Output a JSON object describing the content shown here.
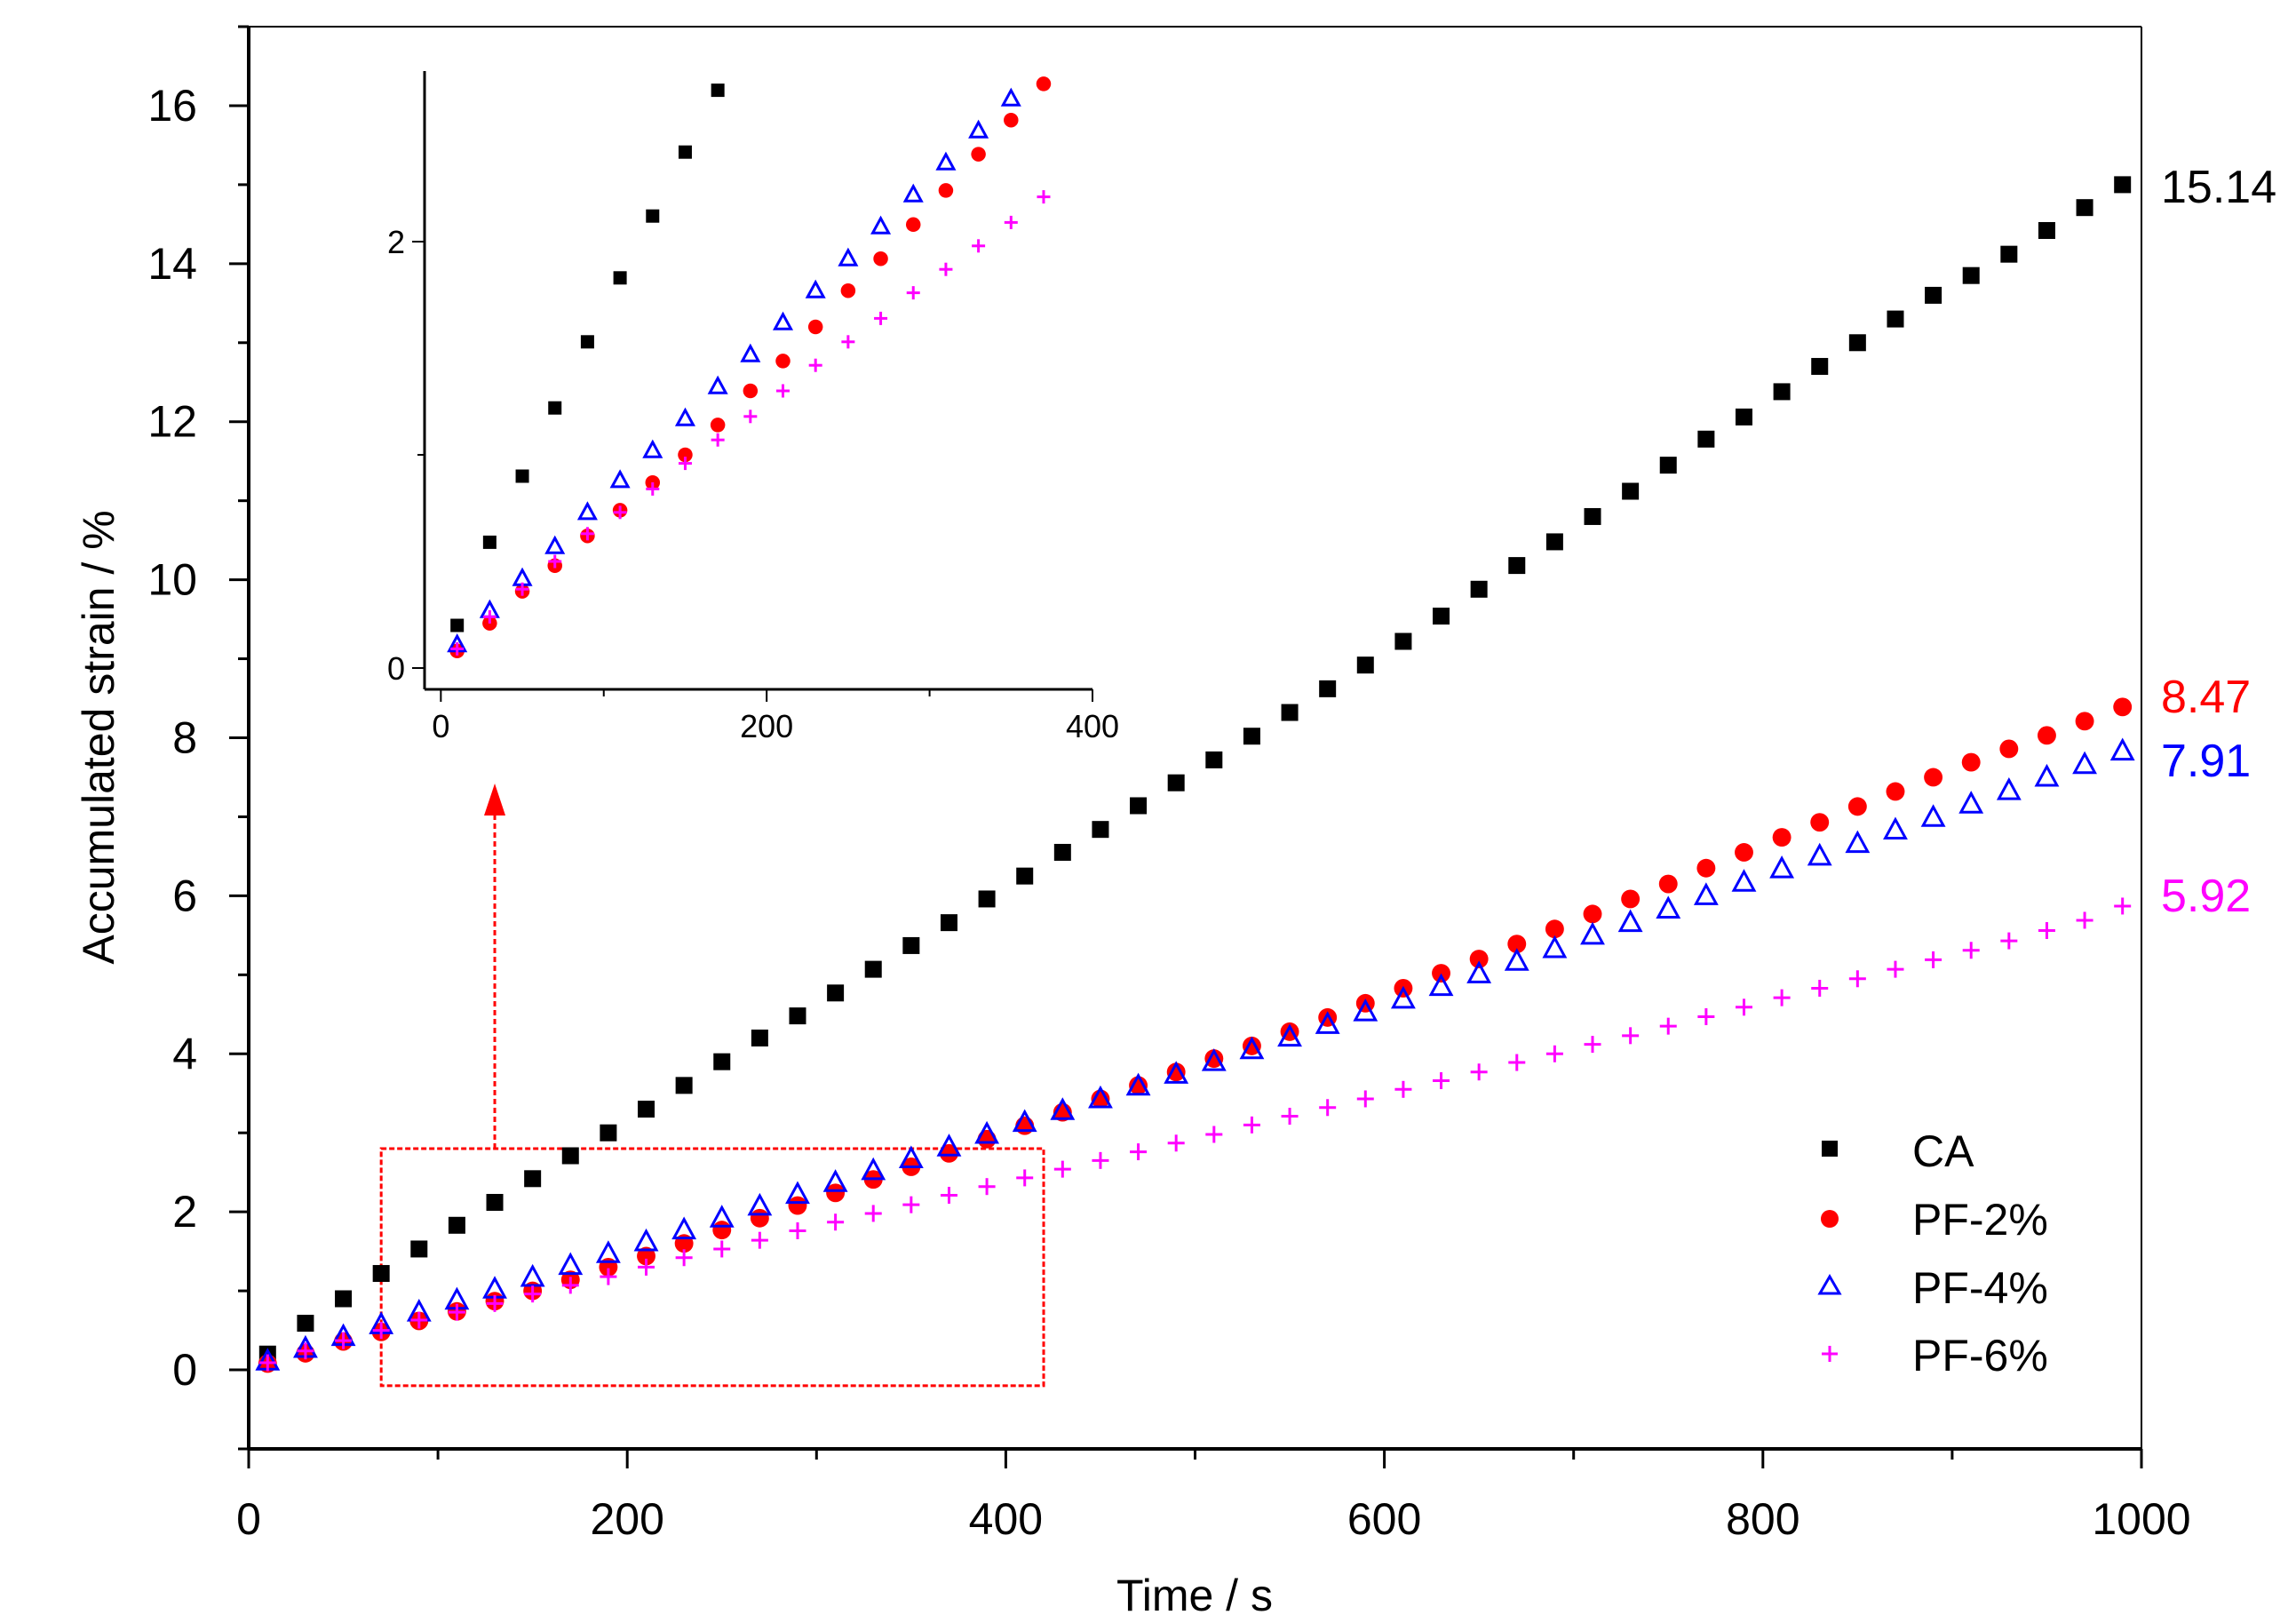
{
  "chart_data": {
    "type": "scatter",
    "xlabel": "Time / s",
    "ylabel": "Accumulated strain / %",
    "xlim": [
      0,
      1000
    ],
    "ylim": [
      -1,
      17
    ],
    "xticks": [
      "0",
      "200",
      "400",
      "600",
      "800",
      "1000"
    ],
    "yticks": [
      "0",
      "2",
      "4",
      "6",
      "8",
      "10",
      "12",
      "14",
      "16"
    ],
    "x": [
      10,
      30,
      50,
      70,
      90,
      110,
      130,
      150,
      170,
      190,
      210,
      230,
      250,
      270,
      290,
      310,
      330,
      350,
      370,
      390,
      410,
      430,
      450,
      470,
      490,
      510,
      530,
      550,
      570,
      590,
      610,
      630,
      650,
      670,
      690,
      710,
      730,
      750,
      770,
      790,
      810,
      830,
      850,
      870,
      890,
      910,
      930,
      950,
      970,
      990
    ],
    "series": [
      {
        "name": "CA",
        "marker": "square",
        "color": "#000000",
        "final_label": "15.14",
        "values": [
          0.2,
          0.59,
          0.9,
          1.22,
          1.53,
          1.83,
          2.12,
          2.42,
          2.71,
          3.0,
          3.3,
          3.6,
          3.9,
          4.2,
          4.48,
          4.77,
          5.07,
          5.37,
          5.66,
          5.96,
          6.25,
          6.55,
          6.84,
          7.14,
          7.43,
          7.72,
          8.02,
          8.32,
          8.62,
          8.92,
          9.22,
          9.54,
          9.88,
          10.18,
          10.48,
          10.8,
          11.12,
          11.45,
          11.78,
          12.06,
          12.38,
          12.7,
          13.0,
          13.3,
          13.6,
          13.85,
          14.12,
          14.42,
          14.71,
          15.0
        ]
      },
      {
        "name": "PF-2%",
        "marker": "circle",
        "color": "#ff0000",
        "final_label": "8.47",
        "values": [
          0.08,
          0.21,
          0.36,
          0.48,
          0.62,
          0.74,
          0.87,
          1.0,
          1.14,
          1.3,
          1.44,
          1.6,
          1.77,
          1.92,
          2.08,
          2.24,
          2.41,
          2.57,
          2.74,
          2.92,
          3.09,
          3.26,
          3.43,
          3.6,
          3.77,
          3.94,
          4.1,
          4.28,
          4.46,
          4.64,
          4.83,
          5.02,
          5.2,
          5.39,
          5.58,
          5.77,
          5.96,
          6.15,
          6.35,
          6.55,
          6.74,
          6.93,
          7.13,
          7.32,
          7.5,
          7.69,
          7.86,
          8.03,
          8.21,
          8.39
        ]
      },
      {
        "name": "PF-4%",
        "marker": "triangle",
        "color": "#0000ff",
        "final_label": "7.91",
        "values": [
          0.11,
          0.27,
          0.42,
          0.57,
          0.73,
          0.88,
          1.02,
          1.17,
          1.32,
          1.47,
          1.62,
          1.77,
          1.92,
          2.07,
          2.22,
          2.37,
          2.52,
          2.67,
          2.82,
          2.98,
          3.13,
          3.28,
          3.43,
          3.59,
          3.74,
          3.9,
          4.05,
          4.21,
          4.37,
          4.53,
          4.69,
          4.85,
          5.01,
          5.17,
          5.33,
          5.5,
          5.66,
          5.83,
          6.0,
          6.17,
          6.34,
          6.5,
          6.66,
          6.83,
          6.99,
          7.16,
          7.33,
          7.5,
          7.66,
          7.83
        ]
      },
      {
        "name": "PF-6%",
        "marker": "plus",
        "color": "#ff00ff",
        "final_label": "5.92",
        "values": [
          0.09,
          0.24,
          0.37,
          0.5,
          0.63,
          0.73,
          0.84,
          0.96,
          1.07,
          1.18,
          1.3,
          1.42,
          1.53,
          1.64,
          1.76,
          1.87,
          1.98,
          2.09,
          2.21,
          2.32,
          2.43,
          2.54,
          2.65,
          2.76,
          2.87,
          2.98,
          3.1,
          3.21,
          3.32,
          3.43,
          3.55,
          3.66,
          3.77,
          3.89,
          4.0,
          4.12,
          4.23,
          4.35,
          4.47,
          4.59,
          4.71,
          4.83,
          4.95,
          5.07,
          5.19,
          5.31,
          5.43,
          5.56,
          5.69,
          5.87
        ]
      }
    ],
    "legend": {
      "placement": "bottom-right",
      "entries": [
        "CA",
        "PF-2%",
        "PF-4%",
        "PF-6%"
      ]
    },
    "zoom_box": {
      "x_range": [
        70,
        420
      ],
      "y_range": [
        -0.2,
        2.8
      ],
      "color": "#ff0000"
    },
    "inset": {
      "xlim": [
        -10,
        400
      ],
      "ylim": [
        -0.1,
        2.8
      ],
      "xticks": [
        "0",
        "200",
        "400"
      ],
      "yticks": [
        "0",
        "2"
      ],
      "x_max_shown": 380
    }
  }
}
